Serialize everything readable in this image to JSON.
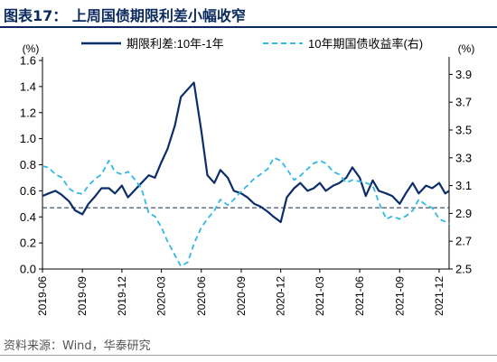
{
  "figure": {
    "title": "图表17：  上周国债期限利差小幅收窄",
    "source": "资料来源：Wind，华泰研究"
  },
  "chart_data": {
    "type": "line",
    "left_axis": {
      "unit": "(%)",
      "ylim": [
        0.0,
        1.6
      ],
      "ticks": [
        "0.0",
        "0.2",
        "0.4",
        "0.6",
        "0.8",
        "1.0",
        "1.2",
        "1.4",
        "1.6"
      ]
    },
    "right_axis": {
      "unit": "(%)",
      "ylim": [
        2.5,
        4.0
      ],
      "ticks": [
        "2.5",
        "2.7",
        "2.9",
        "3.1",
        "3.3",
        "3.5",
        "3.7",
        "3.9"
      ]
    },
    "x_ticks": [
      "2019-06",
      "2019-09",
      "2019-12",
      "2020-03",
      "2020-06",
      "2020-09",
      "2020-12",
      "2021-03",
      "2021-06",
      "2021-09",
      "2021-12"
    ],
    "reference_line": {
      "axis": "left",
      "value": 0.47,
      "style": "dashed",
      "color": "#1a2b4a"
    },
    "legend": {
      "position": "top"
    },
    "series": [
      {
        "name": "期限利差:10年-1年",
        "axis": "left",
        "color": "#0c2d6b",
        "style": "solid",
        "points": [
          [
            "2019-06-01",
            0.56
          ],
          [
            "2019-06-15",
            0.58
          ],
          [
            "2019-07-01",
            0.6
          ],
          [
            "2019-07-15",
            0.57
          ],
          [
            "2019-08-01",
            0.52
          ],
          [
            "2019-08-15",
            0.45
          ],
          [
            "2019-09-01",
            0.42
          ],
          [
            "2019-09-15",
            0.5
          ],
          [
            "2019-10-01",
            0.56
          ],
          [
            "2019-10-15",
            0.62
          ],
          [
            "2019-11-01",
            0.62
          ],
          [
            "2019-11-15",
            0.58
          ],
          [
            "2019-12-01",
            0.64
          ],
          [
            "2019-12-15",
            0.55
          ],
          [
            "2020-01-01",
            0.61
          ],
          [
            "2020-01-15",
            0.66
          ],
          [
            "2020-02-01",
            0.72
          ],
          [
            "2020-02-15",
            0.7
          ],
          [
            "2020-03-01",
            0.82
          ],
          [
            "2020-03-15",
            0.92
          ],
          [
            "2020-04-01",
            1.1
          ],
          [
            "2020-04-15",
            1.32
          ],
          [
            "2020-05-01",
            1.38
          ],
          [
            "2020-05-15",
            1.43
          ],
          [
            "2020-06-01",
            1.06
          ],
          [
            "2020-06-15",
            0.72
          ],
          [
            "2020-07-01",
            0.66
          ],
          [
            "2020-07-15",
            0.76
          ],
          [
            "2020-08-01",
            0.7
          ],
          [
            "2020-08-15",
            0.6
          ],
          [
            "2020-09-01",
            0.58
          ],
          [
            "2020-09-15",
            0.55
          ],
          [
            "2020-10-01",
            0.5
          ],
          [
            "2020-10-15",
            0.48
          ],
          [
            "2020-11-01",
            0.44
          ],
          [
            "2020-11-15",
            0.4
          ],
          [
            "2020-12-01",
            0.36
          ],
          [
            "2020-12-15",
            0.55
          ],
          [
            "2021-01-01",
            0.62
          ],
          [
            "2021-01-15",
            0.66
          ],
          [
            "2021-02-01",
            0.6
          ],
          [
            "2021-02-15",
            0.62
          ],
          [
            "2021-03-01",
            0.66
          ],
          [
            "2021-03-15",
            0.6
          ],
          [
            "2021-04-01",
            0.64
          ],
          [
            "2021-04-15",
            0.66
          ],
          [
            "2021-05-01",
            0.7
          ],
          [
            "2021-05-15",
            0.78
          ],
          [
            "2021-06-01",
            0.7
          ],
          [
            "2021-06-15",
            0.56
          ],
          [
            "2021-07-01",
            0.68
          ],
          [
            "2021-07-15",
            0.6
          ],
          [
            "2021-08-01",
            0.58
          ],
          [
            "2021-08-15",
            0.56
          ],
          [
            "2021-09-01",
            0.5
          ],
          [
            "2021-09-15",
            0.58
          ],
          [
            "2021-10-01",
            0.66
          ],
          [
            "2021-10-15",
            0.58
          ],
          [
            "2021-11-01",
            0.64
          ],
          [
            "2021-11-15",
            0.62
          ],
          [
            "2021-12-01",
            0.66
          ],
          [
            "2021-12-15",
            0.58
          ],
          [
            "2021-12-24",
            0.6
          ]
        ]
      },
      {
        "name": "10年期国债收益率(右)",
        "axis": "right",
        "color": "#33b8e6",
        "style": "dashed",
        "points": [
          [
            "2019-06-01",
            3.24
          ],
          [
            "2019-06-15",
            3.23
          ],
          [
            "2019-07-01",
            3.18
          ],
          [
            "2019-07-15",
            3.16
          ],
          [
            "2019-08-01",
            3.08
          ],
          [
            "2019-08-15",
            3.05
          ],
          [
            "2019-09-01",
            3.04
          ],
          [
            "2019-09-15",
            3.1
          ],
          [
            "2019-10-01",
            3.15
          ],
          [
            "2019-10-15",
            3.18
          ],
          [
            "2019-11-01",
            3.28
          ],
          [
            "2019-11-15",
            3.2
          ],
          [
            "2019-12-01",
            3.18
          ],
          [
            "2019-12-15",
            3.2
          ],
          [
            "2020-01-01",
            3.14
          ],
          [
            "2020-01-15",
            3.08
          ],
          [
            "2020-02-01",
            2.9
          ],
          [
            "2020-02-15",
            2.88
          ],
          [
            "2020-03-01",
            2.8
          ],
          [
            "2020-03-15",
            2.7
          ],
          [
            "2020-04-01",
            2.6
          ],
          [
            "2020-04-15",
            2.52
          ],
          [
            "2020-05-01",
            2.55
          ],
          [
            "2020-05-15",
            2.68
          ],
          [
            "2020-06-01",
            2.8
          ],
          [
            "2020-06-15",
            2.86
          ],
          [
            "2020-07-01",
            2.92
          ],
          [
            "2020-07-15",
            3.0
          ],
          [
            "2020-08-01",
            2.96
          ],
          [
            "2020-08-15",
            3.0
          ],
          [
            "2020-09-01",
            3.06
          ],
          [
            "2020-09-15",
            3.1
          ],
          [
            "2020-10-01",
            3.15
          ],
          [
            "2020-10-15",
            3.18
          ],
          [
            "2020-11-01",
            3.22
          ],
          [
            "2020-11-15",
            3.3
          ],
          [
            "2020-12-01",
            3.28
          ],
          [
            "2020-12-15",
            3.22
          ],
          [
            "2021-01-01",
            3.14
          ],
          [
            "2021-01-15",
            3.17
          ],
          [
            "2021-02-01",
            3.22
          ],
          [
            "2021-02-15",
            3.26
          ],
          [
            "2021-03-01",
            3.28
          ],
          [
            "2021-03-15",
            3.26
          ],
          [
            "2021-04-01",
            3.2
          ],
          [
            "2021-04-15",
            3.18
          ],
          [
            "2021-05-01",
            3.12
          ],
          [
            "2021-05-15",
            3.14
          ],
          [
            "2021-06-01",
            3.13
          ],
          [
            "2021-06-15",
            3.12
          ],
          [
            "2021-07-01",
            3.1
          ],
          [
            "2021-07-15",
            2.98
          ],
          [
            "2021-08-01",
            2.86
          ],
          [
            "2021-08-15",
            2.88
          ],
          [
            "2021-09-01",
            2.86
          ],
          [
            "2021-09-15",
            2.88
          ],
          [
            "2021-10-01",
            2.92
          ],
          [
            "2021-10-15",
            3.0
          ],
          [
            "2021-11-01",
            2.96
          ],
          [
            "2021-11-15",
            2.94
          ],
          [
            "2021-12-01",
            2.86
          ],
          [
            "2021-12-15",
            2.84
          ],
          [
            "2021-12-24",
            2.82
          ]
        ]
      }
    ]
  }
}
